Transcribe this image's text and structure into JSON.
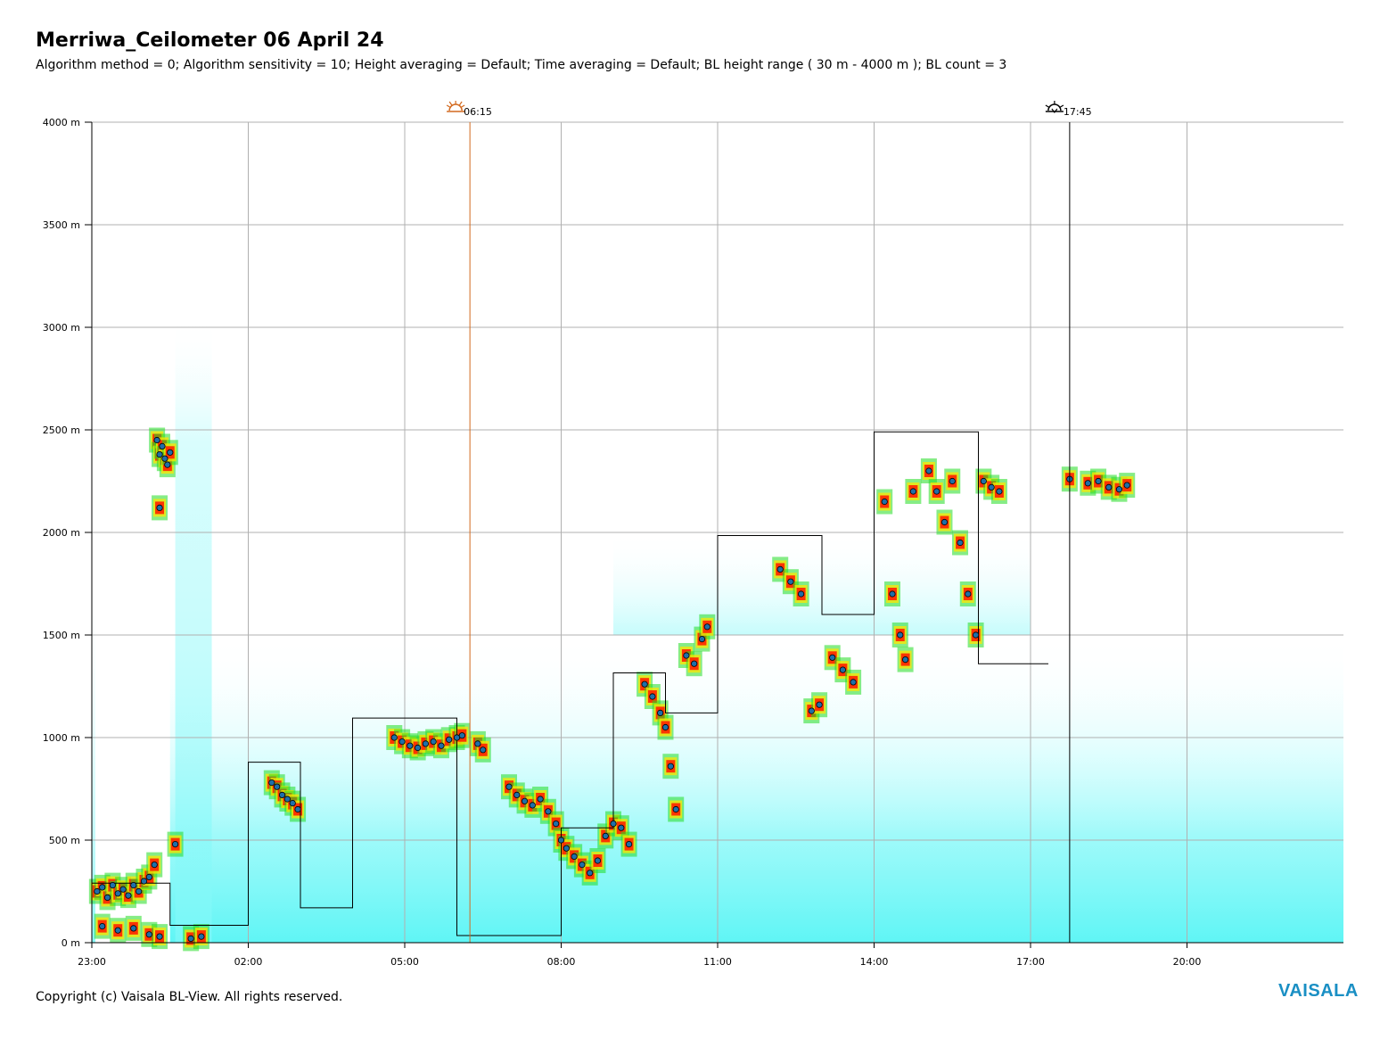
{
  "header": {
    "title": "Merriwa_Ceilometer 06 April 24",
    "subtitle": "Algorithm method = 0; Algorithm sensitivity = 10; Height averaging = Default; Time averaging = Default; BL height range ( 30 m - 4000 m ); BL count = 3"
  },
  "footer": {
    "copyright": "Copyright (c) Vaisala BL-View. All rights reserved.",
    "brand": "VAISALA"
  },
  "colors": {
    "brand": "#1a8fc4",
    "sunrise_line": "#d2691e",
    "sunset_line": "#000000",
    "grid": "#b0b0b0",
    "background_signal": "#7ff8f8",
    "strong_signal": "#ff2000",
    "medium_signal": "#ffe600",
    "weak_signal": "#22dd22",
    "bl_marker": "#1f6fa8",
    "bl_step_line": "#000000"
  },
  "chart_data": {
    "type": "heatmap",
    "xlabel": "",
    "ylabel": "",
    "x_range_hours": [
      -1,
      23
    ],
    "ylim": [
      0,
      4000
    ],
    "grid": true,
    "x_ticks": [
      {
        "value": -1,
        "label": "23:00"
      },
      {
        "value": 2,
        "label": "02:00"
      },
      {
        "value": 5,
        "label": "05:00"
      },
      {
        "value": 8,
        "label": "08:00"
      },
      {
        "value": 11,
        "label": "11:00"
      },
      {
        "value": 14,
        "label": "14:00"
      },
      {
        "value": 17,
        "label": "17:00"
      },
      {
        "value": 20,
        "label": "20:00"
      }
    ],
    "y_ticks": [
      {
        "value": 0,
        "label": "0 m"
      },
      {
        "value": 500,
        "label": "500 m"
      },
      {
        "value": 1000,
        "label": "1000 m"
      },
      {
        "value": 1500,
        "label": "1500 m"
      },
      {
        "value": 2000,
        "label": "2000 m"
      },
      {
        "value": 2500,
        "label": "2500 m"
      },
      {
        "value": 3000,
        "label": "3000 m"
      },
      {
        "value": 3500,
        "label": "3500 m"
      },
      {
        "value": 4000,
        "label": "4000 m"
      }
    ],
    "sunrise": {
      "time": 6.25,
      "label": "06:15"
    },
    "sunset": {
      "time": 17.75,
      "label": "17:45"
    },
    "boundary_layer_steps": [
      [
        -1.0,
        290
      ],
      [
        0.5,
        85
      ],
      [
        2.0,
        880
      ],
      [
        3.0,
        170
      ],
      [
        4.0,
        1095
      ],
      [
        6.0,
        35
      ],
      [
        8.0,
        560
      ],
      [
        9.0,
        1315
      ],
      [
        10.0,
        1120
      ],
      [
        11.0,
        1985
      ],
      [
        13.0,
        1600
      ],
      [
        14.0,
        2490
      ],
      [
        16.0,
        1360
      ],
      [
        17.0,
        1360
      ]
    ],
    "boundary_layer_points": [
      [
        -0.9,
        250
      ],
      [
        -0.8,
        270
      ],
      [
        -0.7,
        220
      ],
      [
        -0.6,
        280
      ],
      [
        -0.5,
        240
      ],
      [
        -0.4,
        260
      ],
      [
        -0.3,
        230
      ],
      [
        -0.2,
        280
      ],
      [
        -0.1,
        250
      ],
      [
        0.0,
        300
      ],
      [
        0.1,
        320
      ],
      [
        0.2,
        380
      ],
      [
        -0.8,
        80
      ],
      [
        -0.5,
        60
      ],
      [
        -0.2,
        70
      ],
      [
        0.1,
        40
      ],
      [
        0.3,
        30
      ],
      [
        0.25,
        2450
      ],
      [
        0.3,
        2380
      ],
      [
        0.35,
        2420
      ],
      [
        0.4,
        2360
      ],
      [
        0.45,
        2330
      ],
      [
        0.5,
        2390
      ],
      [
        0.3,
        2120
      ],
      [
        0.6,
        480
      ],
      [
        0.9,
        20
      ],
      [
        1.1,
        30
      ],
      [
        2.45,
        780
      ],
      [
        2.55,
        760
      ],
      [
        2.65,
        720
      ],
      [
        2.75,
        700
      ],
      [
        2.85,
        680
      ],
      [
        2.95,
        650
      ],
      [
        4.8,
        1000
      ],
      [
        4.95,
        980
      ],
      [
        5.1,
        960
      ],
      [
        5.25,
        950
      ],
      [
        5.4,
        970
      ],
      [
        5.55,
        980
      ],
      [
        5.7,
        960
      ],
      [
        5.85,
        990
      ],
      [
        6.0,
        1000
      ],
      [
        6.1,
        1010
      ],
      [
        6.4,
        970
      ],
      [
        6.5,
        940
      ],
      [
        7.0,
        760
      ],
      [
        7.15,
        720
      ],
      [
        7.3,
        690
      ],
      [
        7.45,
        670
      ],
      [
        7.6,
        700
      ],
      [
        7.75,
        640
      ],
      [
        7.9,
        580
      ],
      [
        8.0,
        500
      ],
      [
        8.1,
        460
      ],
      [
        8.25,
        420
      ],
      [
        8.4,
        380
      ],
      [
        8.55,
        340
      ],
      [
        8.7,
        400
      ],
      [
        8.85,
        520
      ],
      [
        9.0,
        580
      ],
      [
        9.15,
        560
      ],
      [
        9.3,
        480
      ],
      [
        9.6,
        1260
      ],
      [
        9.75,
        1200
      ],
      [
        9.9,
        1120
      ],
      [
        10.0,
        1050
      ],
      [
        10.1,
        860
      ],
      [
        10.2,
        650
      ],
      [
        10.4,
        1400
      ],
      [
        10.55,
        1360
      ],
      [
        10.7,
        1480
      ],
      [
        10.8,
        1540
      ],
      [
        12.2,
        1820
      ],
      [
        12.4,
        1760
      ],
      [
        12.6,
        1700
      ],
      [
        12.8,
        1130
      ],
      [
        12.95,
        1160
      ],
      [
        13.2,
        1390
      ],
      [
        13.4,
        1330
      ],
      [
        13.6,
        1270
      ],
      [
        14.2,
        2150
      ],
      [
        14.35,
        1700
      ],
      [
        14.5,
        1500
      ],
      [
        14.6,
        1380
      ],
      [
        14.75,
        2200
      ],
      [
        15.05,
        2300
      ],
      [
        15.2,
        2200
      ],
      [
        15.35,
        2050
      ],
      [
        15.5,
        2250
      ],
      [
        15.65,
        1950
      ],
      [
        15.8,
        1700
      ],
      [
        15.95,
        1500
      ],
      [
        16.1,
        2250
      ],
      [
        16.25,
        2220
      ],
      [
        16.4,
        2200
      ],
      [
        17.75,
        2260
      ],
      [
        18.1,
        2240
      ],
      [
        18.3,
        2250
      ],
      [
        18.5,
        2220
      ],
      [
        18.7,
        2210
      ],
      [
        18.85,
        2230
      ]
    ]
  }
}
